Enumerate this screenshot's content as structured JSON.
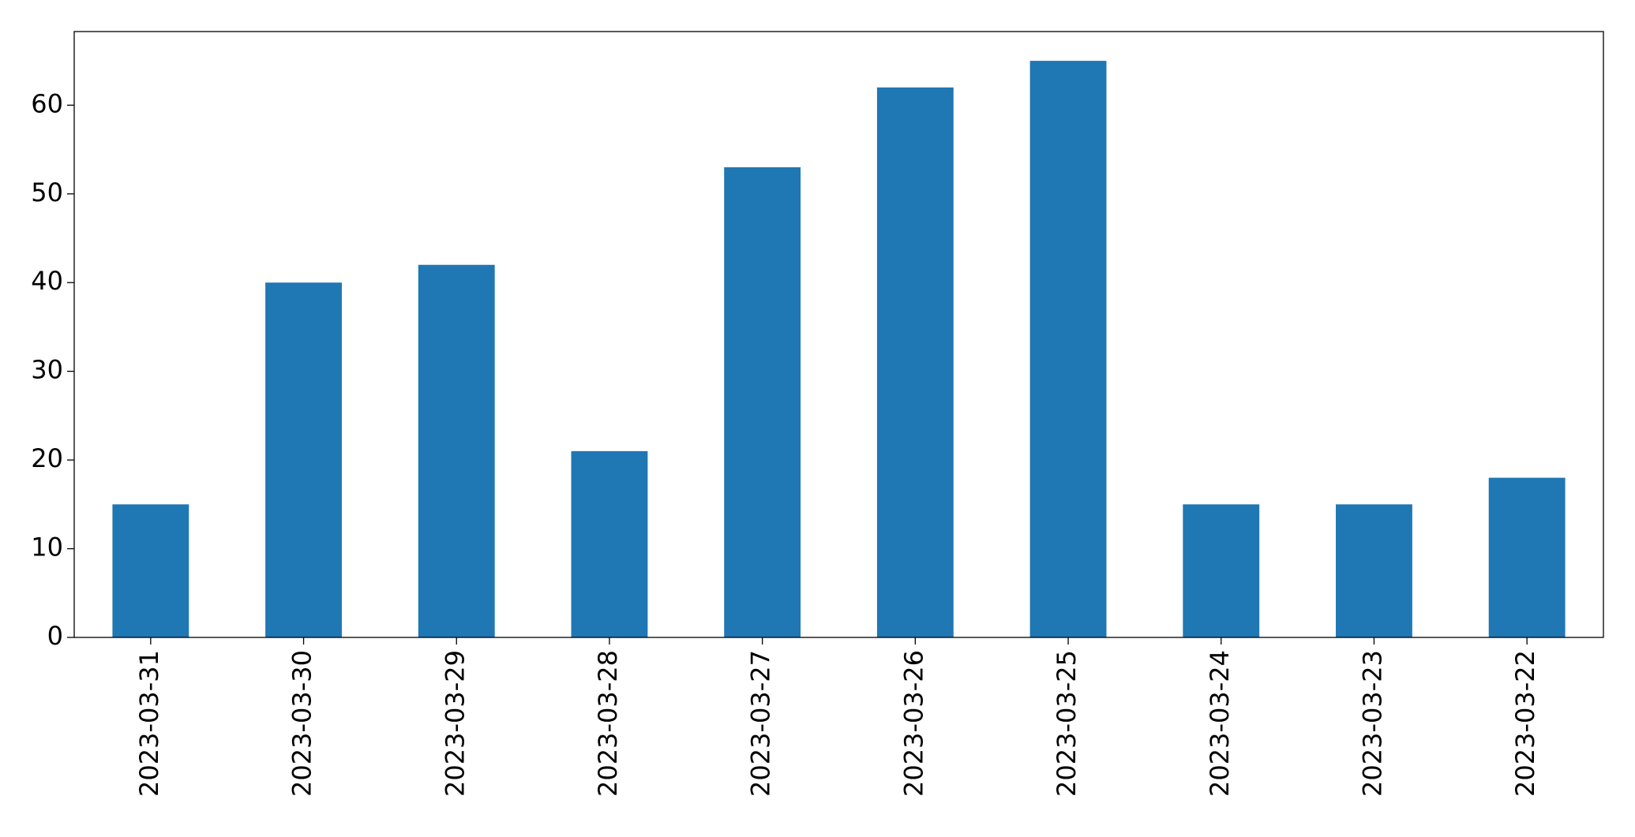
{
  "chart_data": {
    "type": "bar",
    "categories": [
      "2023-03-31",
      "2023-03-30",
      "2023-03-29",
      "2023-03-28",
      "2023-03-27",
      "2023-03-26",
      "2023-03-25",
      "2023-03-24",
      "2023-03-23",
      "2023-03-22"
    ],
    "values": [
      15,
      40,
      42,
      21,
      53,
      62,
      65,
      15,
      15,
      18
    ],
    "color": "#1f77b4",
    "ylim": [
      0,
      68.3
    ],
    "yticks": [
      0,
      10,
      20,
      30,
      40,
      50,
      60
    ],
    "grid": false
  }
}
